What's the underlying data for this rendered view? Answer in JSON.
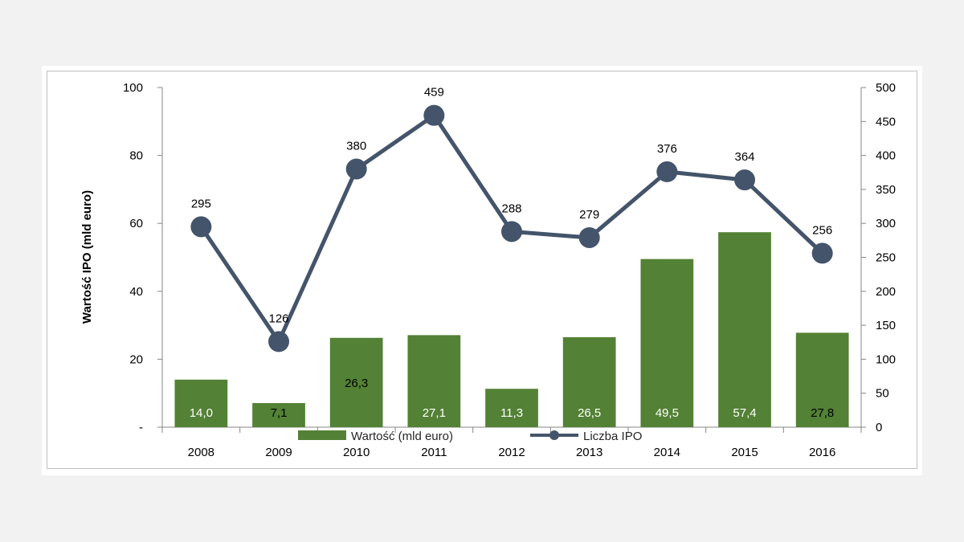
{
  "chart_data": {
    "type": "bar",
    "categories": [
      "2008",
      "2009",
      "2010",
      "2011",
      "2012",
      "2013",
      "2014",
      "2015",
      "2016"
    ],
    "series": [
      {
        "name": "Wartość (mld euro)",
        "type": "bar",
        "axis": "left",
        "values": [
          14.0,
          7.1,
          26.3,
          27.1,
          11.3,
          26.5,
          49.5,
          57.4,
          27.8
        ],
        "labels": [
          "14,0",
          "7,1",
          "26,3",
          "27,1",
          "11,3",
          "26,5",
          "49,5",
          "57,4",
          "27,8"
        ],
        "color": "#538135"
      },
      {
        "name": "Liczba IPO",
        "type": "line",
        "axis": "right",
        "values": [
          295,
          126,
          380,
          459,
          288,
          279,
          376,
          364,
          256
        ],
        "labels": [
          "295",
          "126",
          "380",
          "459",
          "288",
          "279",
          "376",
          "364",
          "256"
        ],
        "color": "#44546a"
      }
    ],
    "ylabel": "Wartość IPO (mld euro)",
    "ylim": [
      0,
      100
    ],
    "y_ticks": [
      {
        "value": 0,
        "label": "-"
      },
      {
        "value": 20,
        "label": "20"
      },
      {
        "value": 40,
        "label": "40"
      },
      {
        "value": 60,
        "label": "60"
      },
      {
        "value": 80,
        "label": "80"
      },
      {
        "value": 100,
        "label": "100"
      }
    ],
    "y2lim": [
      0,
      500
    ],
    "y2_ticks": [
      0,
      50,
      100,
      150,
      200,
      250,
      300,
      350,
      400,
      450,
      500
    ],
    "grid": false,
    "legend_position": "bottom"
  }
}
